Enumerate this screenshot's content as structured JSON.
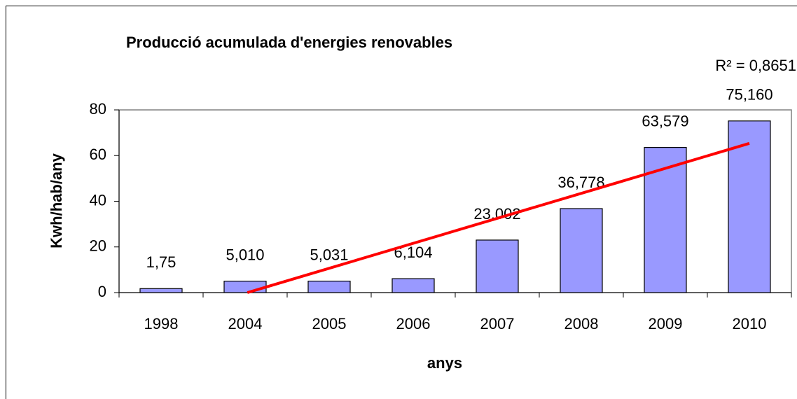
{
  "chart_data": {
    "type": "bar",
    "title": "Producció acumulada d'energies renovables",
    "annotation": "R² = 0,8651",
    "x_label": "anys",
    "y_label": "Kwh/hab/any",
    "categories": [
      "1998",
      "2004",
      "2005",
      "2006",
      "2007",
      "2008",
      "2009",
      "2010"
    ],
    "values": [
      1.75,
      5.01,
      5.031,
      6.104,
      23.002,
      36.778,
      63.579,
      75.16
    ],
    "value_labels": [
      "1,75",
      "5,010",
      "5,031",
      "6,104",
      "23,002",
      "36,778",
      "63,579",
      "75,160"
    ],
    "color": "#9999ff",
    "trendline_color": "#ff0000",
    "ylim": [
      0,
      80
    ],
    "yticks": [
      0,
      20,
      40,
      60,
      80
    ],
    "grid": false
  }
}
